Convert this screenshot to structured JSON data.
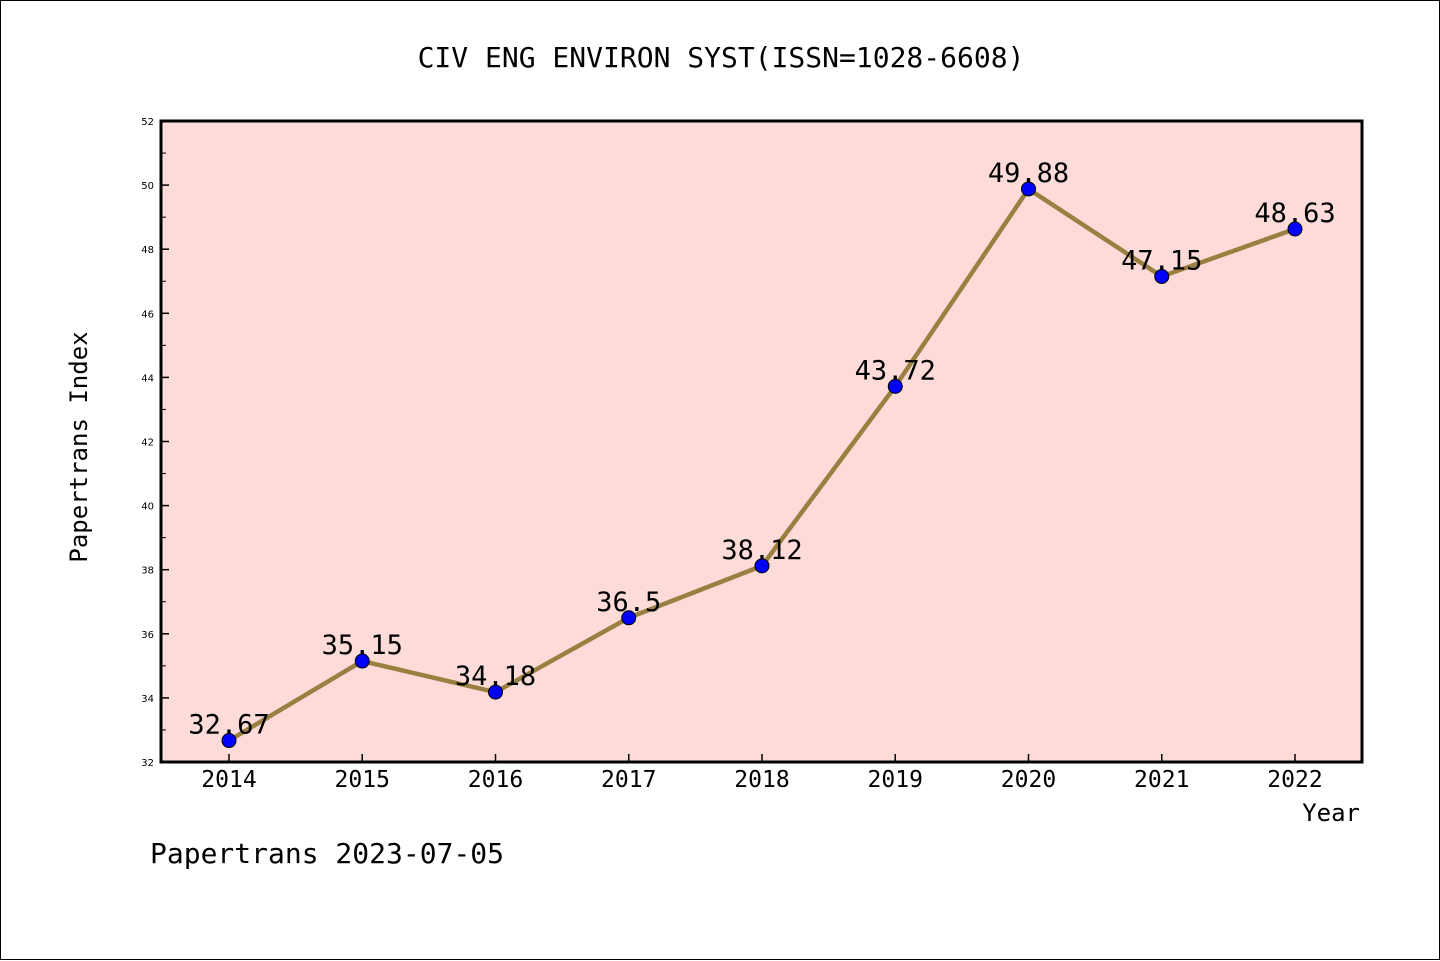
{
  "chart_data": {
    "type": "line",
    "title": "CIV ENG ENVIRON SYST(ISSN=1028-6608)",
    "xlabel": "Year",
    "ylabel": "Papertrans Index",
    "categories": [
      "2014",
      "2015",
      "2016",
      "2017",
      "2018",
      "2019",
      "2020",
      "2021",
      "2022"
    ],
    "series": [
      {
        "name": "",
        "values": [
          32.67,
          35.15,
          34.18,
          36.5,
          38.12,
          43.72,
          49.88,
          47.15,
          48.63
        ],
        "labels": [
          "32.67",
          "35.15",
          "34.18",
          "36.5",
          "38.12",
          "43.72",
          "49.88",
          "47.15",
          "48.63"
        ]
      }
    ],
    "ylim": [
      32,
      52
    ],
    "yticks": [
      "32",
      "34",
      "36",
      "38",
      "40",
      "42",
      "44",
      "46",
      "48",
      "50",
      "52"
    ],
    "grid": false,
    "legend": "none",
    "colors": {
      "plot_background": "#fddbd9",
      "line": "#9a8040",
      "marker": "#0000ff"
    }
  },
  "footer": "Papertrans 2023-07-05"
}
